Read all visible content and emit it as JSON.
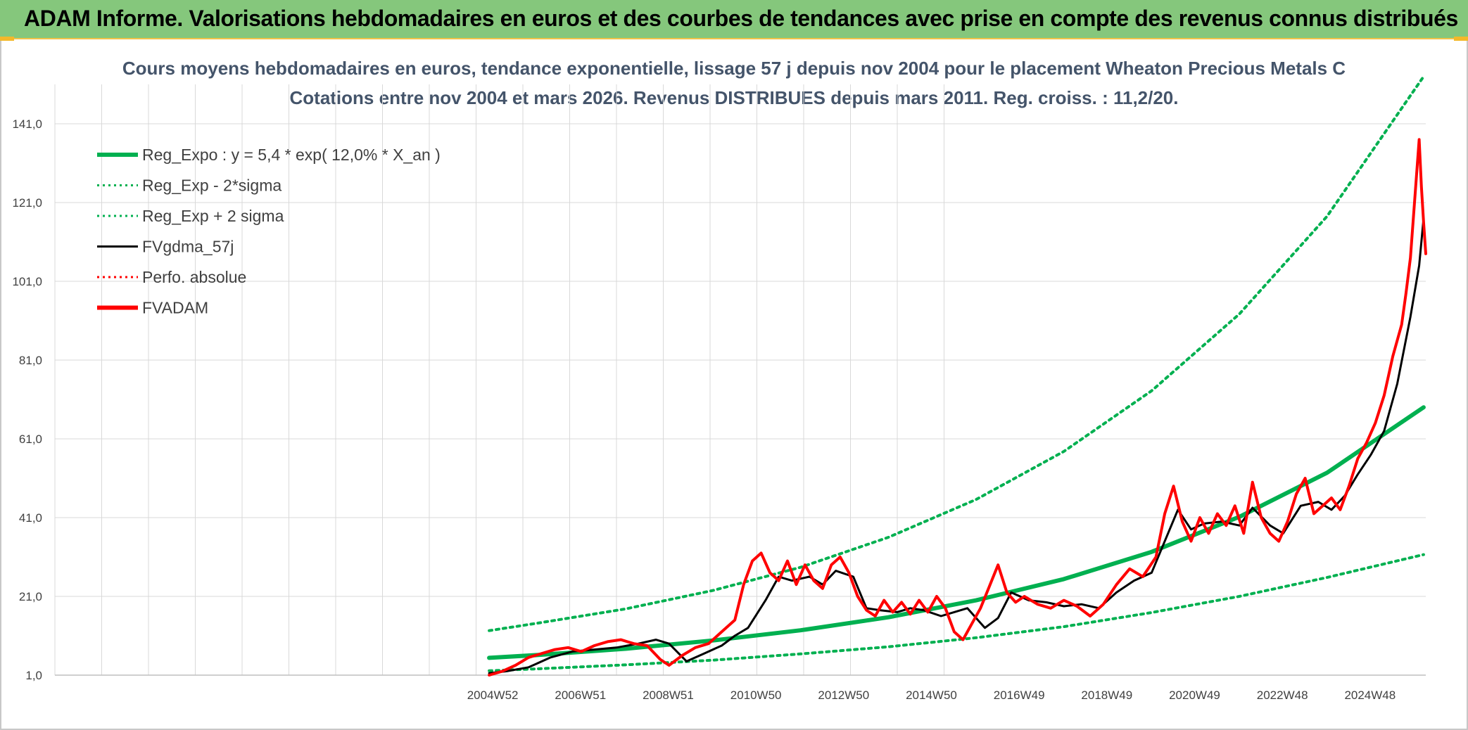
{
  "banner": {
    "title": "ADAM Informe. Valorisations hebdomadaires en euros et des courbes de tendances avec prise en compte des revenus connus distribués"
  },
  "colors": {
    "banner_bg": "#85c77c",
    "green": "#00b050",
    "red": "#ff0000",
    "black": "#000000",
    "grid": "#d9d9d9",
    "title_text": "#44546a"
  },
  "chart_data": {
    "type": "line",
    "title": "Cours moyens hebdomadaires en euros, tendance exponentielle, lissage 57 j depuis nov 2004 pour le placement Wheaton Precious Metals C",
    "subtitle": "Cotations entre nov 2004 et mars 2026. Revenus DISTRIBUES depuis mars 2011. Reg. croiss. : 11,2/20.",
    "xlabel": "",
    "ylabel": "",
    "x_range": [
      1995.0,
      2026.25
    ],
    "ylim": [
      1.0,
      151.0
    ],
    "y_ticks": [
      "1,0",
      "21,0",
      "41,0",
      "61,0",
      "81,0",
      "101,0",
      "121,0",
      "141,0"
    ],
    "y_tick_values": [
      1,
      21,
      41,
      61,
      81,
      101,
      121,
      141
    ],
    "x_tick_labels": [
      "2004W52",
      "2006W51",
      "2008W51",
      "2010W50",
      "2012W50",
      "2014W50",
      "2016W49",
      "2018W49",
      "2020W49",
      "2022W48",
      "2024W48"
    ],
    "x_tick_values": [
      2004.98,
      2006.98,
      2008.98,
      2010.98,
      2012.98,
      2014.98,
      2016.98,
      2018.98,
      2020.98,
      2022.98,
      2024.98
    ],
    "grid": true,
    "legend_position": "top-left",
    "legend": [
      {
        "label": "Reg_Expo : y = 5,4 * exp( 12,0% *  X_an )",
        "color": "#00b050",
        "style": "solid-thick"
      },
      {
        "label": "Reg_Exp - 2*sigma",
        "color": "#00b050",
        "style": "dotted"
      },
      {
        "label": "Reg_Exp + 2 sigma",
        "color": "#00b050",
        "style": "dotted"
      },
      {
        "label": "FVgdma_57j",
        "color": "#000000",
        "style": "solid"
      },
      {
        "label": "Perfo. absolue",
        "color": "#ff0000",
        "style": "dotted"
      },
      {
        "label": "FVADAM",
        "color": "#ff0000",
        "style": "solid-thick"
      }
    ],
    "series": [
      {
        "name": "Reg_Expo : y = 5,4 * exp( 12,0% *  X_an )",
        "x": [
          2004.9,
          2006.0,
          2008.0,
          2010.0,
          2012.0,
          2014.0,
          2016.0,
          2018.0,
          2020.0,
          2022.0,
          2024.0,
          2026.2
        ],
        "values": [
          5.4,
          6.1,
          7.7,
          9.8,
          12.4,
          15.7,
          20.0,
          25.4,
          32.3,
          41.2,
          52.4,
          69.0
        ]
      },
      {
        "name": "Reg_Exp - 2*sigma",
        "x": [
          2004.9,
          2006.0,
          2008.0,
          2010.0,
          2012.0,
          2014.0,
          2016.0,
          2018.0,
          2020.0,
          2022.0,
          2024.0,
          2026.2
        ],
        "values": [
          2.1,
          2.6,
          3.6,
          4.8,
          6.4,
          8.2,
          10.5,
          13.3,
          16.9,
          21.0,
          25.8,
          31.6
        ]
      },
      {
        "name": "Reg_Exp + 2 sigma",
        "x": [
          2004.9,
          2006.0,
          2008.0,
          2010.0,
          2012.0,
          2014.0,
          2016.0,
          2018.0,
          2020.0,
          2022.0,
          2024.0,
          2026.2
        ],
        "values": [
          12.3,
          14.2,
          17.8,
          22.5,
          28.4,
          36.0,
          45.6,
          57.8,
          73.2,
          92.7,
          117.5,
          153.0
        ]
      },
      {
        "name": "FVgdma_57j",
        "x": [
          2004.9,
          2005.3,
          2005.8,
          2006.3,
          2006.8,
          2007.3,
          2007.8,
          2008.3,
          2008.7,
          2009.0,
          2009.4,
          2009.8,
          2010.2,
          2010.5,
          2010.8,
          2011.2,
          2011.5,
          2011.8,
          2012.2,
          2012.5,
          2012.8,
          2013.2,
          2013.5,
          2013.8,
          2014.2,
          2014.5,
          2014.8,
          2015.2,
          2015.5,
          2015.8,
          2016.2,
          2016.5,
          2016.8,
          2017.2,
          2017.6,
          2018.0,
          2018.4,
          2018.8,
          2019.2,
          2019.6,
          2020.0,
          2020.3,
          2020.6,
          2020.9,
          2021.2,
          2021.6,
          2022.0,
          2022.3,
          2022.7,
          2023.0,
          2023.4,
          2023.8,
          2024.1,
          2024.4,
          2024.7,
          2025.0,
          2025.3,
          2025.6,
          2025.9,
          2026.1,
          2026.2
        ],
        "values": [
          1.5,
          2.0,
          3.0,
          5.5,
          7.0,
          7.5,
          8.0,
          9.0,
          10.0,
          9.0,
          4.5,
          6.5,
          8.5,
          11.0,
          13.0,
          20.0,
          26.0,
          25.0,
          26.0,
          24.0,
          27.5,
          26.0,
          18.0,
          17.5,
          17.0,
          18.0,
          17.5,
          16.0,
          17.0,
          18.0,
          13.0,
          15.5,
          22.0,
          20.0,
          19.5,
          18.5,
          19.0,
          18.0,
          22.0,
          25.0,
          27.0,
          35.0,
          43.0,
          38.0,
          39.5,
          40.0,
          39.0,
          43.5,
          39.0,
          37.0,
          44.0,
          45.0,
          43.0,
          46.5,
          52.0,
          57.0,
          63.0,
          75.0,
          92.0,
          105.0,
          117.0
        ]
      },
      {
        "name": "FVADAM",
        "x": [
          2004.9,
          2005.2,
          2005.5,
          2005.8,
          2006.1,
          2006.4,
          2006.7,
          2007.0,
          2007.3,
          2007.6,
          2007.9,
          2008.2,
          2008.5,
          2008.8,
          2009.0,
          2009.3,
          2009.6,
          2009.9,
          2010.2,
          2010.5,
          2010.7,
          2010.9,
          2011.1,
          2011.3,
          2011.5,
          2011.7,
          2011.9,
          2012.1,
          2012.3,
          2012.5,
          2012.7,
          2012.9,
          2013.1,
          2013.3,
          2013.5,
          2013.7,
          2013.9,
          2014.1,
          2014.3,
          2014.5,
          2014.7,
          2014.9,
          2015.1,
          2015.3,
          2015.5,
          2015.7,
          2015.9,
          2016.1,
          2016.3,
          2016.5,
          2016.7,
          2016.9,
          2017.1,
          2017.4,
          2017.7,
          2018.0,
          2018.3,
          2018.6,
          2018.9,
          2019.2,
          2019.5,
          2019.8,
          2020.1,
          2020.3,
          2020.5,
          2020.7,
          2020.9,
          2021.1,
          2021.3,
          2021.5,
          2021.7,
          2021.9,
          2022.1,
          2022.3,
          2022.5,
          2022.7,
          2022.9,
          2023.1,
          2023.3,
          2023.5,
          2023.7,
          2023.9,
          2024.1,
          2024.3,
          2024.5,
          2024.7,
          2024.9,
          2025.1,
          2025.3,
          2025.5,
          2025.7,
          2025.8,
          2025.9,
          2026.0,
          2026.1,
          2026.15,
          2026.2,
          2026.25
        ],
        "values": [
          1.0,
          2.0,
          3.5,
          5.5,
          6.5,
          7.5,
          8.0,
          7.0,
          8.5,
          9.5,
          10.0,
          9.0,
          8.5,
          5.0,
          3.5,
          6.0,
          8.0,
          9.0,
          12.0,
          15.0,
          24.0,
          30.0,
          32.0,
          27.0,
          25.0,
          30.0,
          24.0,
          29.0,
          25.0,
          23.0,
          29.0,
          31.0,
          27.0,
          21.0,
          17.5,
          16.0,
          20.0,
          17.0,
          19.5,
          16.5,
          20.0,
          17.0,
          21.0,
          18.0,
          12.0,
          10.0,
          14.0,
          18.0,
          23.5,
          29.0,
          22.0,
          19.5,
          21.0,
          19.0,
          18.0,
          20.0,
          18.5,
          16.0,
          19.0,
          24.0,
          28.0,
          26.0,
          31.0,
          42.0,
          49.0,
          40.0,
          35.0,
          41.0,
          37.0,
          42.0,
          39.0,
          44.0,
          37.0,
          50.0,
          41.0,
          37.0,
          35.0,
          40.0,
          47.0,
          51.0,
          42.0,
          44.0,
          46.0,
          43.0,
          49.0,
          56.0,
          60.0,
          65.0,
          72.0,
          82.0,
          90.0,
          98.0,
          107.0,
          122.0,
          137.0,
          125.0,
          116.0,
          108.0
        ]
      }
    ]
  }
}
